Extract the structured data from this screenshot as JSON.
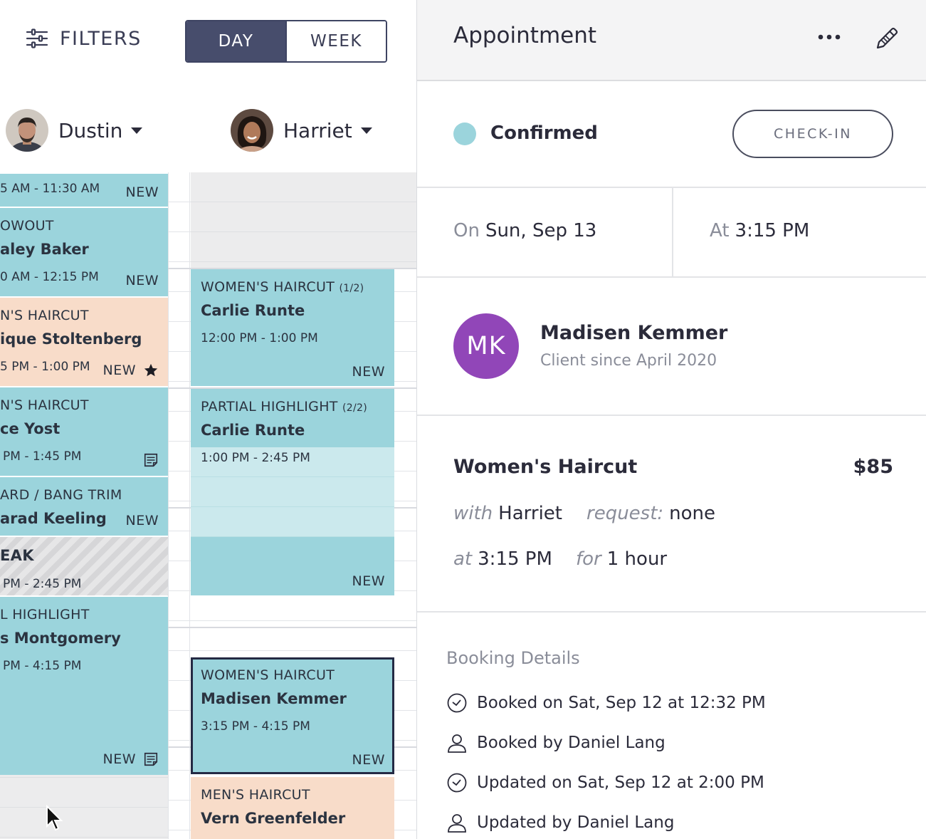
{
  "toolbar": {
    "filters_label": "FILTERS",
    "view_day": "DAY",
    "view_week": "WEEK"
  },
  "staff": [
    {
      "name": "Dustin"
    },
    {
      "name": "Harriet"
    }
  ],
  "dustin_appointments": [
    {
      "service": "",
      "client": "",
      "time": "5 AM - 11:30 AM",
      "badge": "NEW"
    },
    {
      "service": "OWOUT",
      "client": "aley Baker",
      "time": "0 AM - 12:15 PM",
      "badge": "NEW"
    },
    {
      "service": "N'S HAIRCUT",
      "client": "ique Stoltenberg",
      "time": "5 PM - 1:00 PM",
      "badge": "NEW"
    },
    {
      "service": "N'S HAIRCUT",
      "client": "ce Yost",
      "time": "PM - 1:45 PM",
      "badge": ""
    },
    {
      "service": "ARD / BANG TRIM",
      "client": "arad Keeling",
      "time": "",
      "badge": "NEW"
    },
    {
      "service": "EAK",
      "client": "",
      "time": "PM - 2:45 PM",
      "badge": ""
    },
    {
      "service": "L HIGHLIGHT",
      "client": "s Montgomery",
      "time": "PM - 4:15 PM",
      "badge": "NEW"
    }
  ],
  "harriet_appointments": [
    {
      "service": "WOMEN'S HAIRCUT",
      "part": "(1/2)",
      "client": "Carlie Runte",
      "time": "12:00 PM - 1:00 PM",
      "badge": "NEW"
    },
    {
      "service": "PARTIAL HIGHLIGHT",
      "part": "(2/2)",
      "client": "Carlie Runte",
      "time": "1:00 PM - 2:45 PM",
      "badge": "NEW"
    },
    {
      "service": "WOMEN'S HAIRCUT",
      "part": "",
      "client": "Madisen Kemmer",
      "time": "3:15 PM - 4:15 PM",
      "badge": "NEW"
    },
    {
      "service": "MEN'S HAIRCUT",
      "part": "",
      "client": "Vern Greenfelder",
      "time": "",
      "badge": ""
    }
  ],
  "panel": {
    "title": "Appointment",
    "status": "Confirmed",
    "status_color": "#9bd4dc",
    "checkin_label": "CHECK-IN",
    "on_label": "On",
    "date": "Sun, Sep 13",
    "at_label": "At",
    "time": "3:15 PM",
    "client": {
      "initials": "MK",
      "name": "Madisen Kemmer",
      "since": "Client since April 2020",
      "avatar_color": "#9146b8"
    },
    "service": {
      "name": "Women's Haircut",
      "price": "$85",
      "with_label": "with",
      "with": "Harriet",
      "request_label": "request:",
      "request": "none",
      "at_label": "at",
      "at": "3:15 PM",
      "for_label": "for",
      "duration": "1 hour"
    },
    "booking": {
      "heading": "Booking Details",
      "booked_on": "Booked on Sat, Sep 12 at 12:32 PM",
      "booked_by": "Booked by Daniel Lang",
      "updated_on": "Updated on Sat, Sep 12 at 2:00 PM",
      "updated_by": "Updated by Daniel Lang"
    }
  }
}
